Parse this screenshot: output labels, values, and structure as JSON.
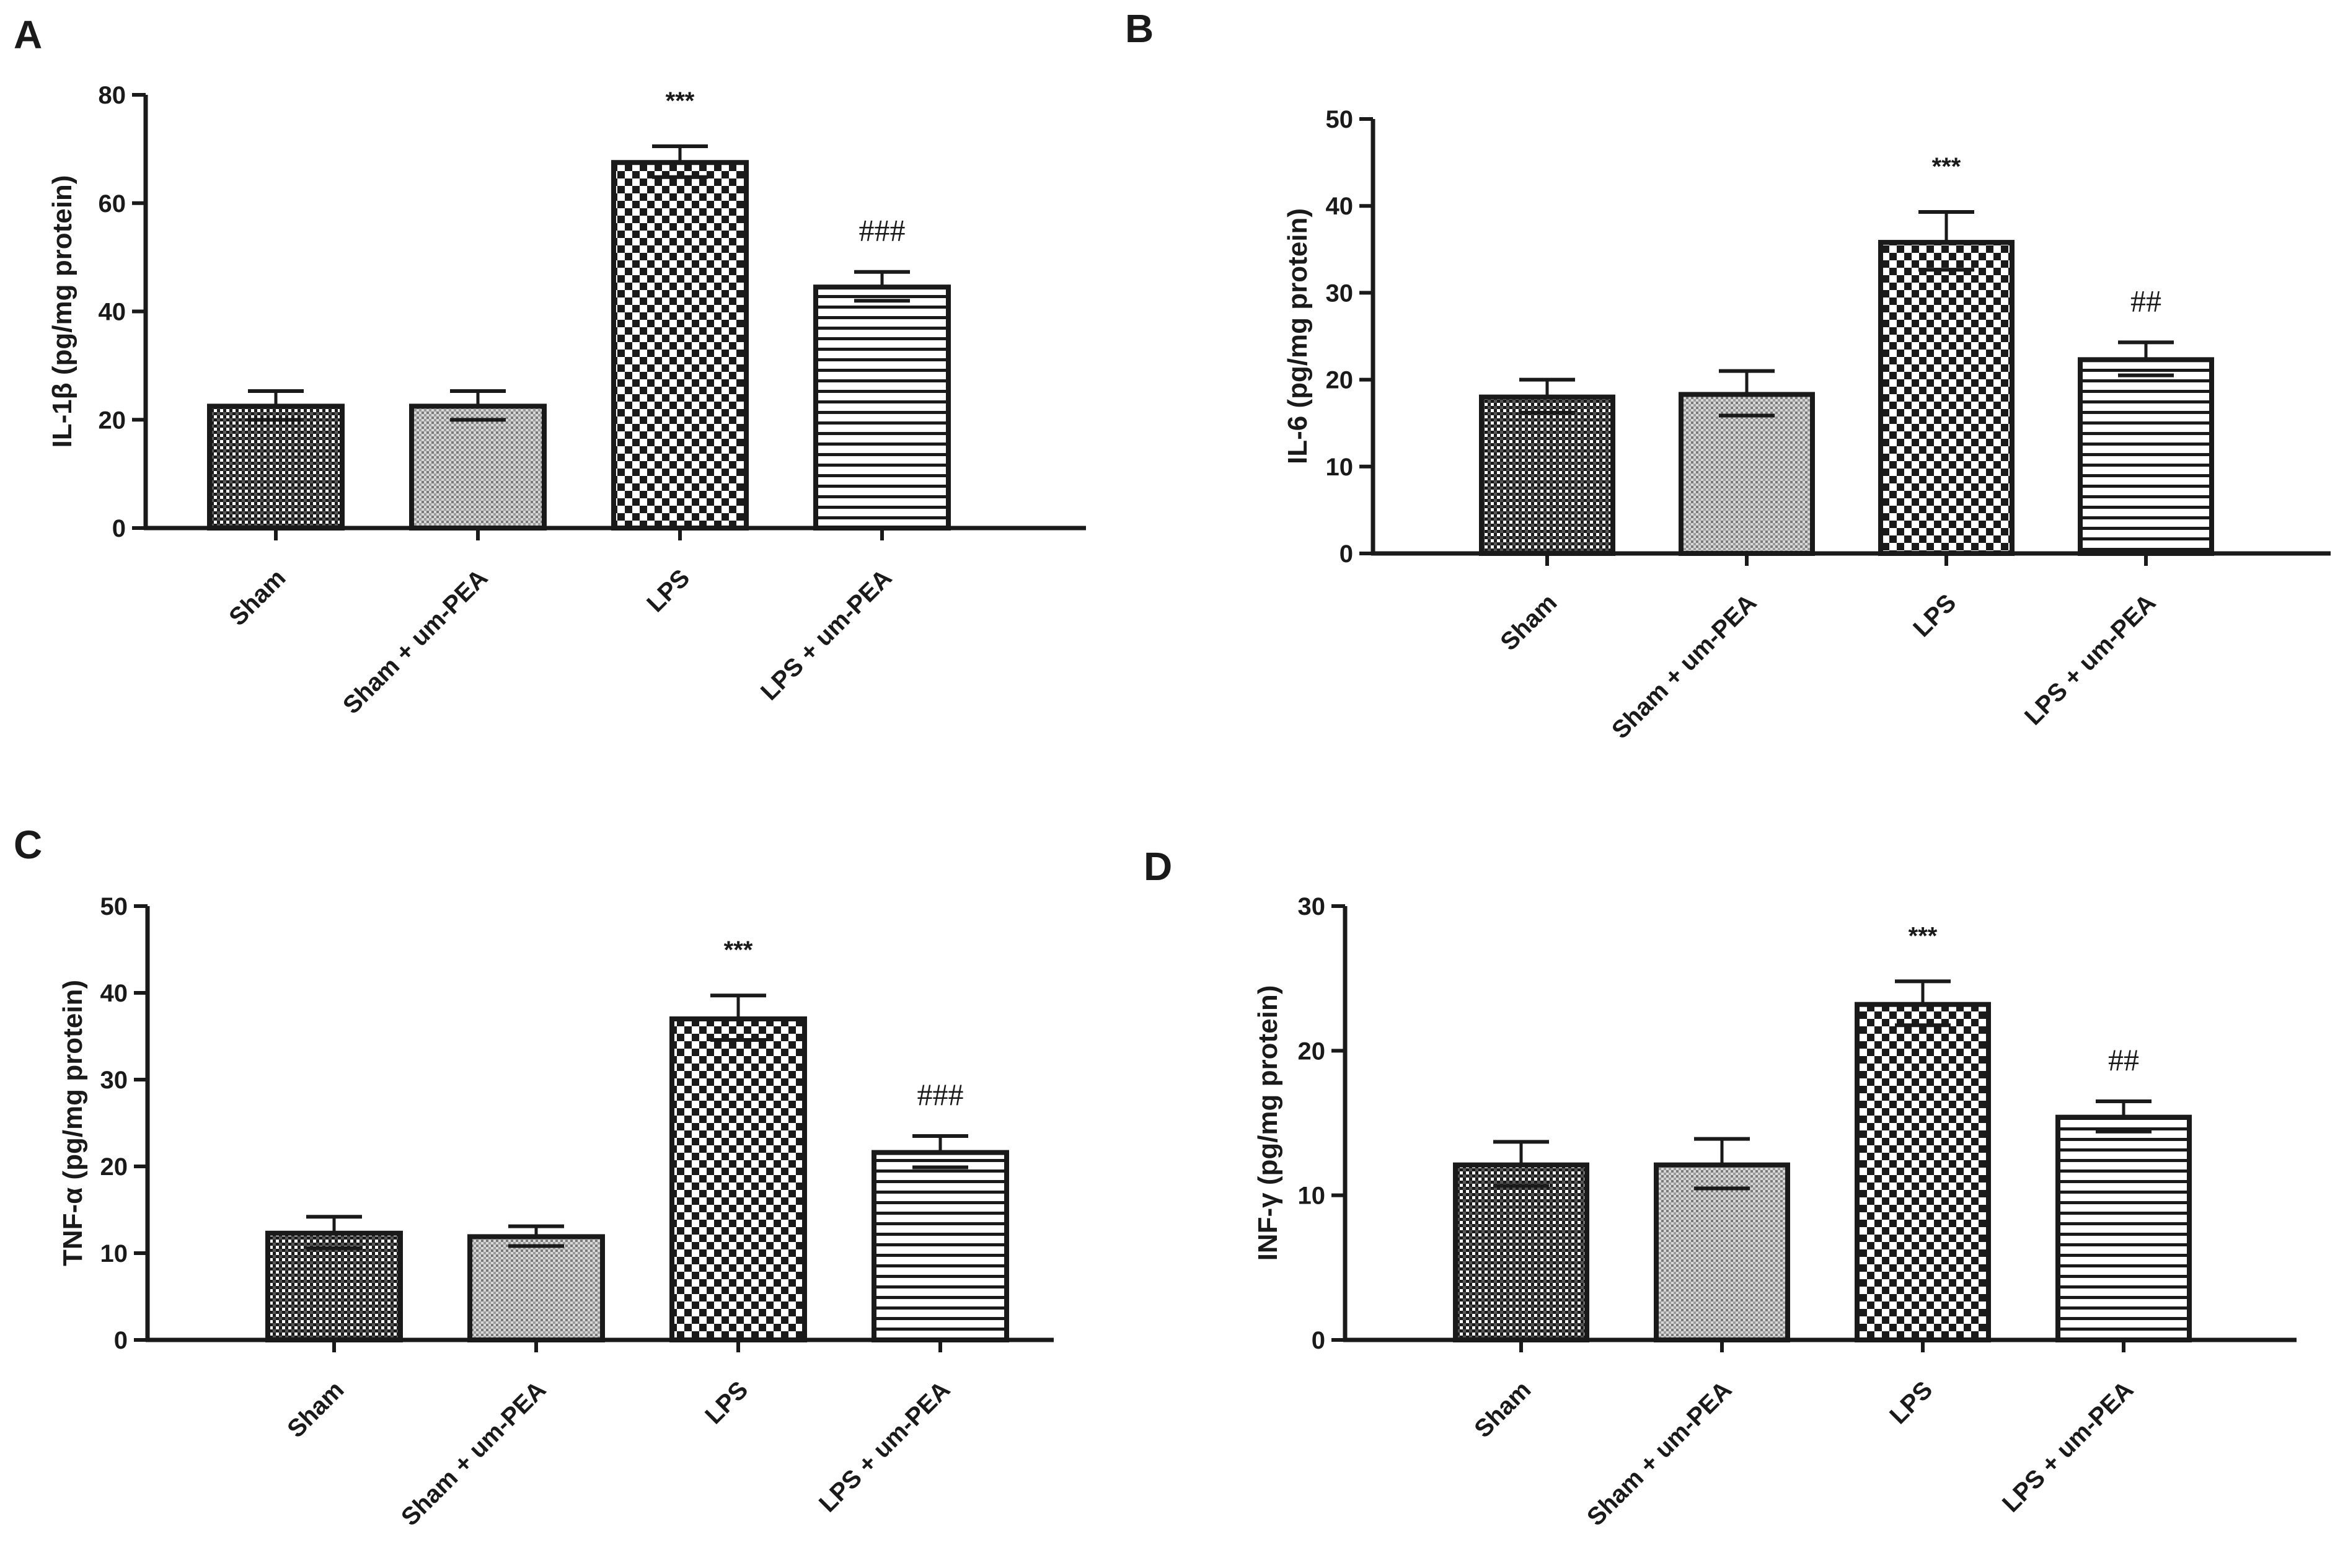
{
  "figure": {
    "panels": [
      "A",
      "B",
      "C",
      "D"
    ]
  },
  "colors": {
    "ink": "#1a1a1a",
    "background": "#ffffff"
  },
  "chart_data": [
    {
      "panel": "A",
      "type": "bar",
      "ylabel": "IL-1β (pg/mg protein)",
      "categories": [
        "Sham",
        "Sham + um-PEA",
        "LPS",
        "LPS + um-PEA"
      ],
      "values": [
        22.5,
        22.5,
        67.5,
        44.5
      ],
      "errors": [
        2.8,
        2.8,
        3.0,
        2.8
      ],
      "significance": [
        "",
        "",
        "***",
        "###"
      ],
      "patterns": [
        "dense-check",
        "fine-dots",
        "coarse-check",
        "hlines"
      ],
      "ylim": [
        0,
        80
      ],
      "yticks": [
        0,
        20,
        40,
        60,
        80
      ]
    },
    {
      "panel": "B",
      "type": "bar",
      "ylabel": "IL-6 (pg/mg protein)",
      "categories": [
        "Sham",
        "Sham + um-PEA",
        "LPS",
        "LPS + um-PEA"
      ],
      "values": [
        18,
        18.3,
        35.8,
        22.3
      ],
      "errors": [
        2.0,
        2.7,
        3.5,
        2.0
      ],
      "significance": [
        "",
        "",
        "***",
        "##"
      ],
      "patterns": [
        "dense-check",
        "fine-dots",
        "coarse-check",
        "hlines"
      ],
      "ylim": [
        0,
        50
      ],
      "yticks": [
        0,
        10,
        20,
        30,
        40,
        50
      ]
    },
    {
      "panel": "C",
      "type": "bar",
      "ylabel": "TNF-α (pg/mg protein)",
      "categories": [
        "Sham",
        "Sham + um-PEA",
        "LPS",
        "LPS + um-PEA"
      ],
      "values": [
        12.3,
        11.9,
        37,
        21.6
      ],
      "errors": [
        1.9,
        1.2,
        2.7,
        1.9
      ],
      "significance": [
        "",
        "",
        "***",
        "###"
      ],
      "patterns": [
        "dense-check",
        "fine-dots",
        "coarse-check",
        "hlines"
      ],
      "ylim": [
        0,
        50
      ],
      "yticks": [
        0,
        10,
        20,
        30,
        40,
        50
      ]
    },
    {
      "panel": "D",
      "type": "bar",
      "ylabel": "INF-γ (pg/mg protein)",
      "categories": [
        "Sham",
        "Sham + um-PEA",
        "LPS",
        "LPS + um-PEA"
      ],
      "values": [
        12.1,
        12.1,
        23.2,
        15.4
      ],
      "errors": [
        1.6,
        1.8,
        1.6,
        1.1
      ],
      "significance": [
        "",
        "",
        "***",
        "##"
      ],
      "patterns": [
        "dense-check",
        "fine-dots",
        "coarse-check",
        "hlines"
      ],
      "ylim": [
        0,
        30
      ],
      "yticks": [
        0,
        10,
        20,
        30
      ]
    }
  ]
}
